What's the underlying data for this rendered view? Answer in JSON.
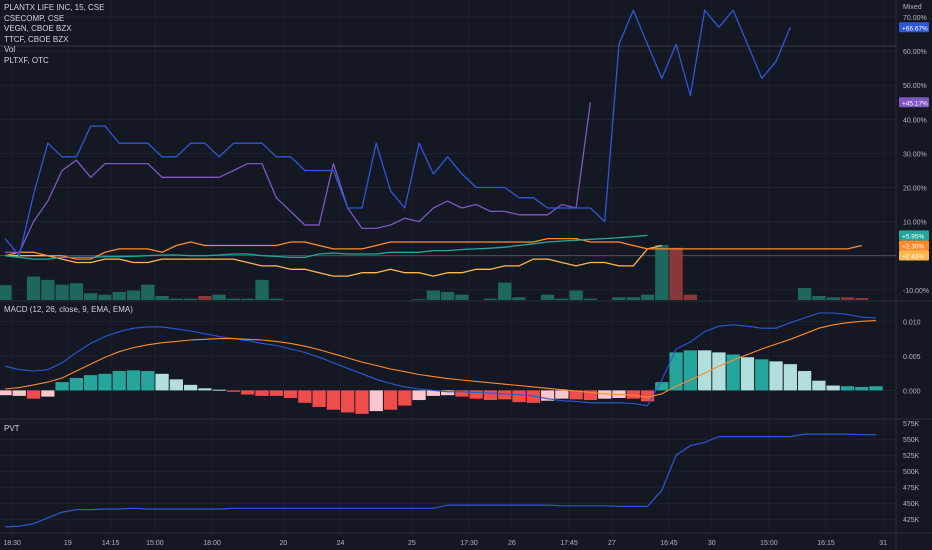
{
  "legend": [
    {
      "label": "PLANTX LIFE INC, 15, CSE",
      "color": "#2f57d8"
    },
    {
      "label": "CSECOMP, CSE",
      "color": "#26a69a"
    },
    {
      "label": "VEGN, CBOE BZX",
      "color": "#ff8a2b"
    },
    {
      "label": "TTCF, CBOE BZX",
      "color": "#ffb64a"
    },
    {
      "label": "Vol",
      "color": "#26a69a"
    },
    {
      "label": "PLTXF, OTC",
      "color": "#7e57c2"
    }
  ],
  "scale_mode": "Mixed",
  "chart_data": [
    {
      "type": "line",
      "title": "",
      "x": [
        0,
        1,
        2,
        3,
        4,
        5,
        6,
        7,
        8,
        9,
        10,
        11,
        12,
        13,
        14,
        15,
        16,
        17,
        18,
        19,
        20,
        21,
        22,
        23,
        24,
        25,
        26,
        27,
        28,
        29,
        30,
        31,
        32,
        33,
        34,
        35,
        36,
        37,
        38,
        39,
        40,
        41,
        42,
        43,
        44,
        45,
        46,
        47,
        48,
        49,
        50,
        51,
        52,
        53,
        54,
        55,
        56,
        57,
        58,
        59,
        60,
        61
      ],
      "x_tick_labels": [
        {
          "at": 0.5,
          "label": "18:30"
        },
        {
          "at": 4.4,
          "label": "19"
        },
        {
          "at": 7.4,
          "label": "14:15"
        },
        {
          "at": 10.5,
          "label": "15:00"
        },
        {
          "at": 14.5,
          "label": "18:00"
        },
        {
          "at": 19.5,
          "label": "20"
        },
        {
          "at": 23.5,
          "label": "24"
        },
        {
          "at": 28.5,
          "label": "25"
        },
        {
          "at": 32.5,
          "label": "17:30"
        },
        {
          "at": 35.5,
          "label": "26"
        },
        {
          "at": 39.5,
          "label": "17:45"
        },
        {
          "at": 42.5,
          "label": "27"
        },
        {
          "at": 46.5,
          "label": "16:45"
        },
        {
          "at": 49.5,
          "label": "30"
        },
        {
          "at": 53.5,
          "label": "15:00"
        },
        {
          "at": 57.5,
          "label": "16:15"
        },
        {
          "at": 61.5,
          "label": "31"
        }
      ],
      "y_ticks": [
        "70.00%",
        "60.00%",
        "50.00%",
        "40.00%",
        "30.00%",
        "20.00%",
        "10.00%",
        "-10.00%"
      ],
      "y_tick_values": [
        70,
        60,
        50,
        40,
        30,
        20,
        10,
        -10
      ],
      "ylim": [
        -13,
        75
      ],
      "series": [
        {
          "name": "PLANTX LIFE INC, 15, CSE",
          "color": "#2f57d8",
          "last_label": "+66.67%",
          "values": [
            5,
            0,
            18,
            33,
            29,
            29,
            38,
            38,
            33,
            33,
            33,
            29,
            29,
            33,
            33,
            29,
            33,
            33,
            33,
            29,
            29,
            25,
            25,
            25,
            14,
            14,
            33,
            19,
            14,
            33,
            24,
            29,
            24,
            20,
            20,
            20,
            17,
            17,
            14,
            14,
            14,
            14,
            10,
            62,
            72,
            62,
            52,
            62,
            47,
            72,
            67,
            72,
            62,
            52,
            57,
            67,
            null,
            null,
            null,
            null,
            null,
            null
          ]
        },
        {
          "name": "PLTXF, OTC",
          "color": "#7e57c2",
          "last_label": "+45.17%",
          "values": [
            1,
            1,
            10,
            16,
            25,
            28,
            23,
            27,
            27,
            27,
            27,
            23,
            23,
            23,
            23,
            23,
            25,
            27,
            27,
            17,
            13,
            9,
            9,
            27,
            14,
            8,
            8,
            9,
            11,
            10,
            14,
            16,
            14,
            15,
            13,
            13,
            12,
            12,
            12,
            15,
            14,
            45,
            null,
            null,
            null,
            null,
            null,
            null,
            null,
            null,
            null,
            null,
            null,
            null,
            null,
            null,
            null,
            null,
            null,
            null,
            null,
            null
          ]
        },
        {
          "name": "CSECOMP, CSE",
          "color": "#26a69a",
          "last_label": "+5.95%",
          "values": [
            0,
            -0.5,
            -1,
            -1,
            -0.5,
            -0.5,
            -0.5,
            -0.3,
            -0.3,
            -0.2,
            0,
            0.2,
            0.2,
            0,
            0,
            0.2,
            0.5,
            0.5,
            0,
            -0.2,
            -0.5,
            -0.5,
            0.5,
            0.8,
            0.5,
            0.5,
            0.5,
            1,
            1,
            1,
            1.5,
            1.5,
            1.8,
            2,
            2.2,
            2.5,
            3,
            3.5,
            4,
            4.3,
            4.5,
            4.8,
            5,
            5.3,
            5.6,
            5.95,
            null,
            null,
            null,
            null,
            null,
            null,
            null,
            null,
            null,
            null,
            null,
            null,
            null,
            null,
            null,
            null
          ]
        },
        {
          "name": "VEGN, CBOE BZX",
          "color": "#ff8a2b",
          "last_label": "+2.30%",
          "values": [
            0,
            1,
            1,
            0,
            0,
            -1,
            -1,
            1,
            2,
            2,
            2,
            1,
            3,
            4,
            3,
            3,
            3,
            3,
            3,
            3,
            4,
            4,
            3,
            2,
            2,
            2,
            3,
            4,
            4,
            4,
            4,
            4,
            4,
            4,
            4,
            4,
            4,
            4,
            5,
            5,
            5,
            4,
            4,
            4,
            3,
            2,
            2,
            2,
            2,
            2,
            2,
            2,
            2,
            2,
            2,
            2,
            2,
            2,
            2,
            2,
            3,
            null
          ]
        },
        {
          "name": "TTCF, CBOE BZX",
          "color": "#ffb64a",
          "last_label": "+2.43%",
          "values": [
            0,
            0,
            0,
            0,
            -1,
            -2,
            -2,
            -1,
            -1,
            -2,
            -2,
            -1,
            -1,
            -1,
            -1,
            -1,
            -1,
            -2,
            -3,
            -3,
            -4,
            -4,
            -5,
            -6,
            -6,
            -5,
            -5,
            -4,
            -5,
            -5,
            -6,
            -5,
            -5,
            -4,
            -4,
            -3,
            -3,
            -1,
            -1,
            -2,
            -3,
            -2,
            -2,
            -3,
            -3,
            2,
            3,
            null,
            null,
            null,
            null,
            null,
            null,
            null,
            null,
            null,
            null,
            null,
            null,
            null,
            null,
            null
          ]
        }
      ],
      "volume": {
        "name": "Vol",
        "values": [
          22,
          0,
          35,
          30,
          23,
          25,
          10,
          8,
          12,
          14,
          23,
          6,
          2,
          2,
          6,
          8,
          2,
          2,
          30,
          2,
          0,
          0,
          0,
          0,
          0,
          0,
          0,
          0,
          0,
          1,
          14,
          12,
          8,
          0,
          2,
          26,
          4,
          0,
          8,
          2,
          14,
          2,
          0,
          4,
          4,
          8,
          82,
          78,
          8,
          0,
          0,
          0,
          0,
          0,
          0,
          0,
          18,
          6,
          4,
          4,
          3,
          0
        ],
        "up": [
          true,
          true,
          true,
          true,
          true,
          true,
          true,
          true,
          true,
          true,
          true,
          true,
          true,
          true,
          false,
          true,
          true,
          true,
          true,
          true,
          true,
          true,
          true,
          true,
          true,
          true,
          true,
          true,
          true,
          true,
          true,
          true,
          true,
          true,
          true,
          true,
          true,
          true,
          true,
          true,
          true,
          true,
          true,
          true,
          true,
          true,
          true,
          false,
          false,
          true,
          true,
          true,
          true,
          true,
          true,
          true,
          true,
          true,
          true,
          false,
          false,
          true
        ]
      }
    },
    {
      "type": "bar",
      "title": "MACD (12, 26, close, 9, EMA, EMA)",
      "y_ticks": [
        "0.010",
        "0.005",
        "0.000"
      ],
      "y_tick_values": [
        0.01,
        0.005,
        0
      ],
      "ylim": [
        -0.004,
        0.0128
      ],
      "histogram": [
        -0.0007,
        -0.0008,
        -0.0012,
        -0.0009,
        0.0012,
        0.0018,
        0.0022,
        0.0024,
        0.0028,
        0.0029,
        0.0028,
        0.0024,
        0.0016,
        0.0008,
        0.0003,
        0.0001,
        -0.0002,
        -0.0006,
        -0.0008,
        -0.0008,
        -0.0011,
        -0.0018,
        -0.0024,
        -0.0028,
        -0.0032,
        -0.0034,
        -0.003,
        -0.0028,
        -0.0022,
        -0.0014,
        -0.0008,
        -0.0007,
        -0.0009,
        -0.0012,
        -0.0014,
        -0.0013,
        -0.0017,
        -0.0018,
        -0.0015,
        -0.0012,
        -0.0013,
        -0.0014,
        -0.0012,
        -0.0011,
        -0.0012,
        -0.0016,
        0.0012,
        0.0055,
        0.0058,
        0.0058,
        0.0055,
        0.0052,
        0.0048,
        0.0045,
        0.0042,
        0.0038,
        0.0028,
        0.0014,
        0.0007,
        0.0006,
        0.0005,
        0.0006
      ],
      "hist_colors": [
        "#f8c8cc",
        "#f8c8cc",
        "#f04c4c",
        "#f8c8cc",
        "#26a69a",
        "#26a69a",
        "#26a69a",
        "#26a69a",
        "#26a69a",
        "#26a69a",
        "#26a69a",
        "#b2dfdb",
        "#b2dfdb",
        "#b2dfdb",
        "#b2dfdb",
        "#b2dfdb",
        "#f04c4c",
        "#f04c4c",
        "#f04c4c",
        "#f04c4c",
        "#f04c4c",
        "#f04c4c",
        "#f04c4c",
        "#f04c4c",
        "#f04c4c",
        "#f04c4c",
        "#f8c8cc",
        "#f04c4c",
        "#f04c4c",
        "#f8c8cc",
        "#f8c8cc",
        "#f8c8cc",
        "#f04c4c",
        "#f04c4c",
        "#f04c4c",
        "#f04c4c",
        "#f04c4c",
        "#f04c4c",
        "#f8c8cc",
        "#f8c8cc",
        "#f04c4c",
        "#f04c4c",
        "#f8c8cc",
        "#f8c8cc",
        "#f04c4c",
        "#f04c4c",
        "#26a69a",
        "#26a69a",
        "#26a69a",
        "#b2dfdb",
        "#b2dfdb",
        "#26a69a",
        "#b2dfdb",
        "#26a69a",
        "#b2dfdb",
        "#b2dfdb",
        "#b2dfdb",
        "#b2dfdb",
        "#b2dfdb",
        "#26a69a",
        "#26a69a",
        "#26a69a"
      ],
      "macd_line": {
        "color": "#2f57d8",
        "values": [
          0.0035,
          0.003,
          0.0028,
          0.003,
          0.004,
          0.0055,
          0.0068,
          0.0078,
          0.0085,
          0.009,
          0.0092,
          0.0092,
          0.0089,
          0.0086,
          0.0082,
          0.0078,
          0.0075,
          0.0072,
          0.0068,
          0.0065,
          0.006,
          0.0055,
          0.0048,
          0.004,
          0.0032,
          0.0024,
          0.0016,
          0.001,
          0.0005,
          0.0002,
          0,
          -0.0002,
          -0.0002,
          -0.0003,
          -0.0004,
          -0.0005,
          -0.0006,
          -0.0008,
          -0.0012,
          -0.0015,
          -0.0016,
          -0.0018,
          -0.0018,
          -0.0018,
          -0.0019,
          -0.0022,
          0.0015,
          0.006,
          0.007,
          0.0085,
          0.0093,
          0.0095,
          0.0093,
          0.009,
          0.009,
          0.0098,
          0.0105,
          0.0112,
          0.0112,
          0.011,
          0.0106,
          0.0105
        ]
      },
      "signal_line": {
        "color": "#ff8a2b",
        "values": [
          0.0002,
          0.0004,
          0.0008,
          0.0012,
          0.0018,
          0.0028,
          0.0038,
          0.0048,
          0.0056,
          0.0062,
          0.0066,
          0.0069,
          0.0071,
          0.0073,
          0.0074,
          0.0075,
          0.0075,
          0.0074,
          0.0073,
          0.0071,
          0.0068,
          0.0064,
          0.0059,
          0.0053,
          0.0047,
          0.0041,
          0.0036,
          0.0031,
          0.0027,
          0.0023,
          0.002,
          0.0017,
          0.0015,
          0.0013,
          0.0011,
          0.0009,
          0.0007,
          0.0005,
          0.0003,
          0.0001,
          -0.0001,
          -0.0003,
          -0.0005,
          -0.0006,
          -0.0007,
          -0.001,
          -0.0005,
          0.0006,
          0.0015,
          0.0025,
          0.0035,
          0.0044,
          0.0052,
          0.006,
          0.0067,
          0.0074,
          0.0082,
          0.009,
          0.0095,
          0.0098,
          0.01,
          0.0101
        ]
      }
    },
    {
      "type": "line",
      "title": "PVT",
      "y_ticks": [
        "575K",
        "550K",
        "525K",
        "500K",
        "475K",
        "450K",
        "425K"
      ],
      "y_tick_values": [
        575000,
        550000,
        525000,
        500000,
        475000,
        450000,
        425000
      ],
      "ylim": [
        405000,
        580000
      ],
      "series": [
        {
          "name": "PVT",
          "color": "#2f57d8",
          "values": [
            413000,
            414000,
            418000,
            427000,
            436000,
            440000,
            440000,
            441000,
            441000,
            442000,
            441000,
            441000,
            441000,
            441000,
            441000,
            441000,
            442000,
            442000,
            442000,
            442000,
            442000,
            442000,
            442000,
            442000,
            442000,
            442000,
            442000,
            442000,
            442000,
            442000,
            442000,
            447000,
            447000,
            447000,
            447000,
            447000,
            447000,
            447000,
            447000,
            446000,
            446000,
            446000,
            446000,
            445000,
            445000,
            445000,
            470000,
            525000,
            540000,
            545000,
            554000,
            554000,
            554000,
            554000,
            554000,
            554000,
            558000,
            558000,
            558000,
            558000,
            557000,
            557000
          ]
        }
      ]
    }
  ]
}
